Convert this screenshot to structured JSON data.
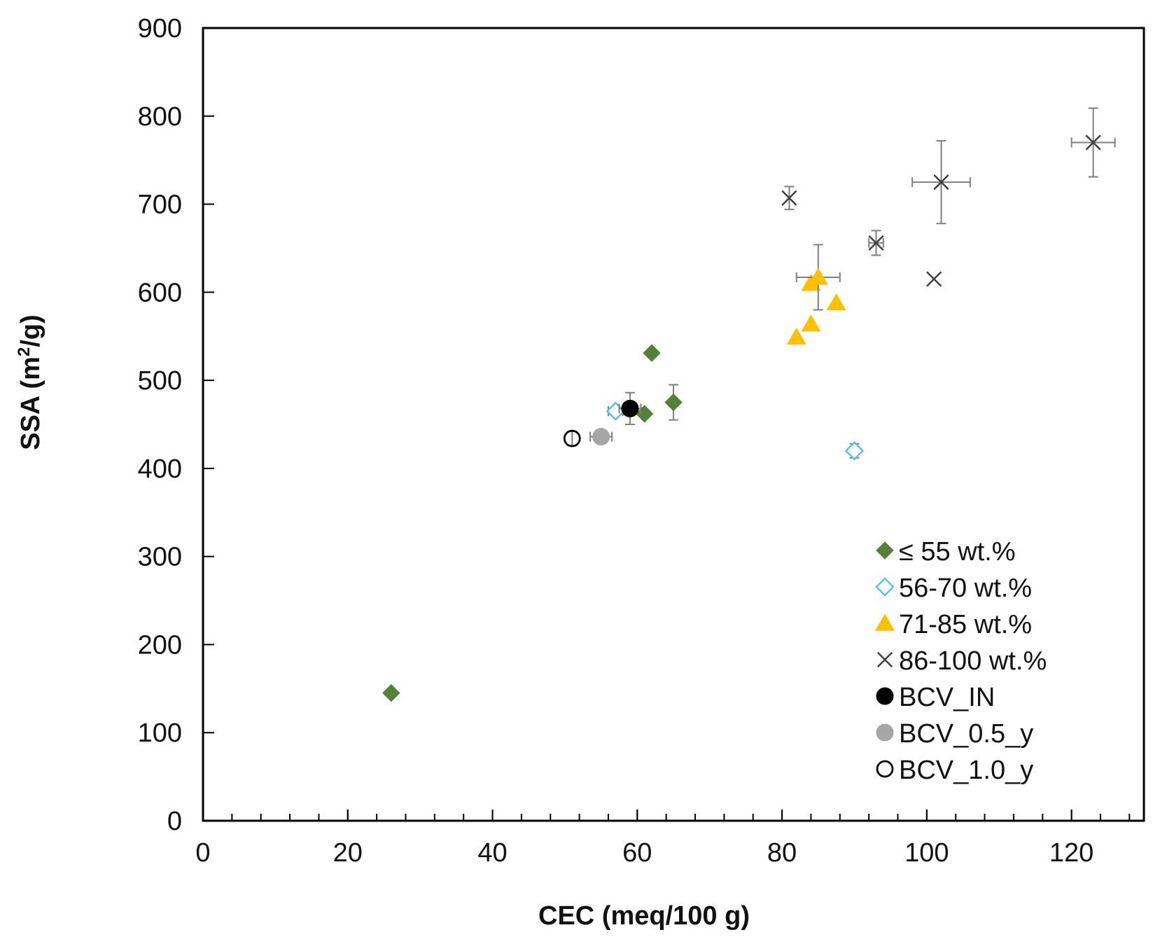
{
  "chart_data": {
    "type": "scatter",
    "title": "",
    "xlabel": "CEC (meq/100 g)",
    "ylabel_main": "SSA (m",
    "ylabel_sup": "2",
    "ylabel_end": "/g)",
    "xlim": [
      0,
      130
    ],
    "ylim": [
      0,
      900
    ],
    "x_ticks": [
      0,
      20,
      40,
      60,
      80,
      100,
      120
    ],
    "x_minor_step": 4,
    "y_ticks": [
      0,
      100,
      200,
      300,
      400,
      500,
      600,
      700,
      800,
      900
    ],
    "grid": false,
    "legend_position": "bottom-right",
    "colors": {
      "green": "#538135",
      "blue": "#5bc0eb",
      "yellow": "#ffc000",
      "cross": "#404040",
      "black": "#000000",
      "gray": "#a6a6a6",
      "errorbar": "#7f7f7f"
    },
    "series": [
      {
        "name": "≤ 55 wt.%",
        "marker": "diamond-filled",
        "color": "#538135",
        "points": [
          {
            "x": 26,
            "y": 145
          },
          {
            "x": 61,
            "y": 462
          },
          {
            "x": 62,
            "y": 531
          },
          {
            "x": 65,
            "y": 475,
            "yerr": 20
          }
        ]
      },
      {
        "name": "56-70 wt.%",
        "marker": "diamond-open",
        "color": "#5bc0eb",
        "points": [
          {
            "x": 57,
            "y": 465,
            "xerr": 1
          },
          {
            "x": 90,
            "y": 420,
            "yerr": 8
          }
        ]
      },
      {
        "name": "71-85 wt.%",
        "marker": "triangle",
        "color": "#ffc000",
        "points": [
          {
            "x": 82,
            "y": 549
          },
          {
            "x": 84,
            "y": 564
          },
          {
            "x": 84,
            "y": 610
          },
          {
            "x": 85,
            "y": 617,
            "xerr": 3,
            "yerr": 37
          },
          {
            "x": 87.5,
            "y": 588
          }
        ]
      },
      {
        "name": "86-100 wt.%",
        "marker": "cross",
        "color": "#404040",
        "points": [
          {
            "x": 81,
            "y": 707,
            "yerr": 13
          },
          {
            "x": 93,
            "y": 656,
            "yerr": 14,
            "xerr": 1
          },
          {
            "x": 101,
            "y": 615
          },
          {
            "x": 102,
            "y": 725,
            "xerr": 4,
            "yerr": 47
          },
          {
            "x": 123,
            "y": 770,
            "xerr": 3,
            "yerr": 39
          }
        ]
      },
      {
        "name": "BCV_IN",
        "marker": "circle-filled",
        "color": "#000000",
        "points": [
          {
            "x": 59,
            "y": 468,
            "xerr": 1.5,
            "yerr": 18
          }
        ]
      },
      {
        "name": "BCV_0.5_y",
        "marker": "circle-filled",
        "color": "#a6a6a6",
        "points": [
          {
            "x": 55,
            "y": 436,
            "xerr": 1.5,
            "yerr": 5
          }
        ]
      },
      {
        "name": "BCV_1.0_y",
        "marker": "circle-open",
        "color": "#000000",
        "points": [
          {
            "x": 51,
            "y": 434,
            "yerr": 8
          }
        ]
      }
    ]
  }
}
